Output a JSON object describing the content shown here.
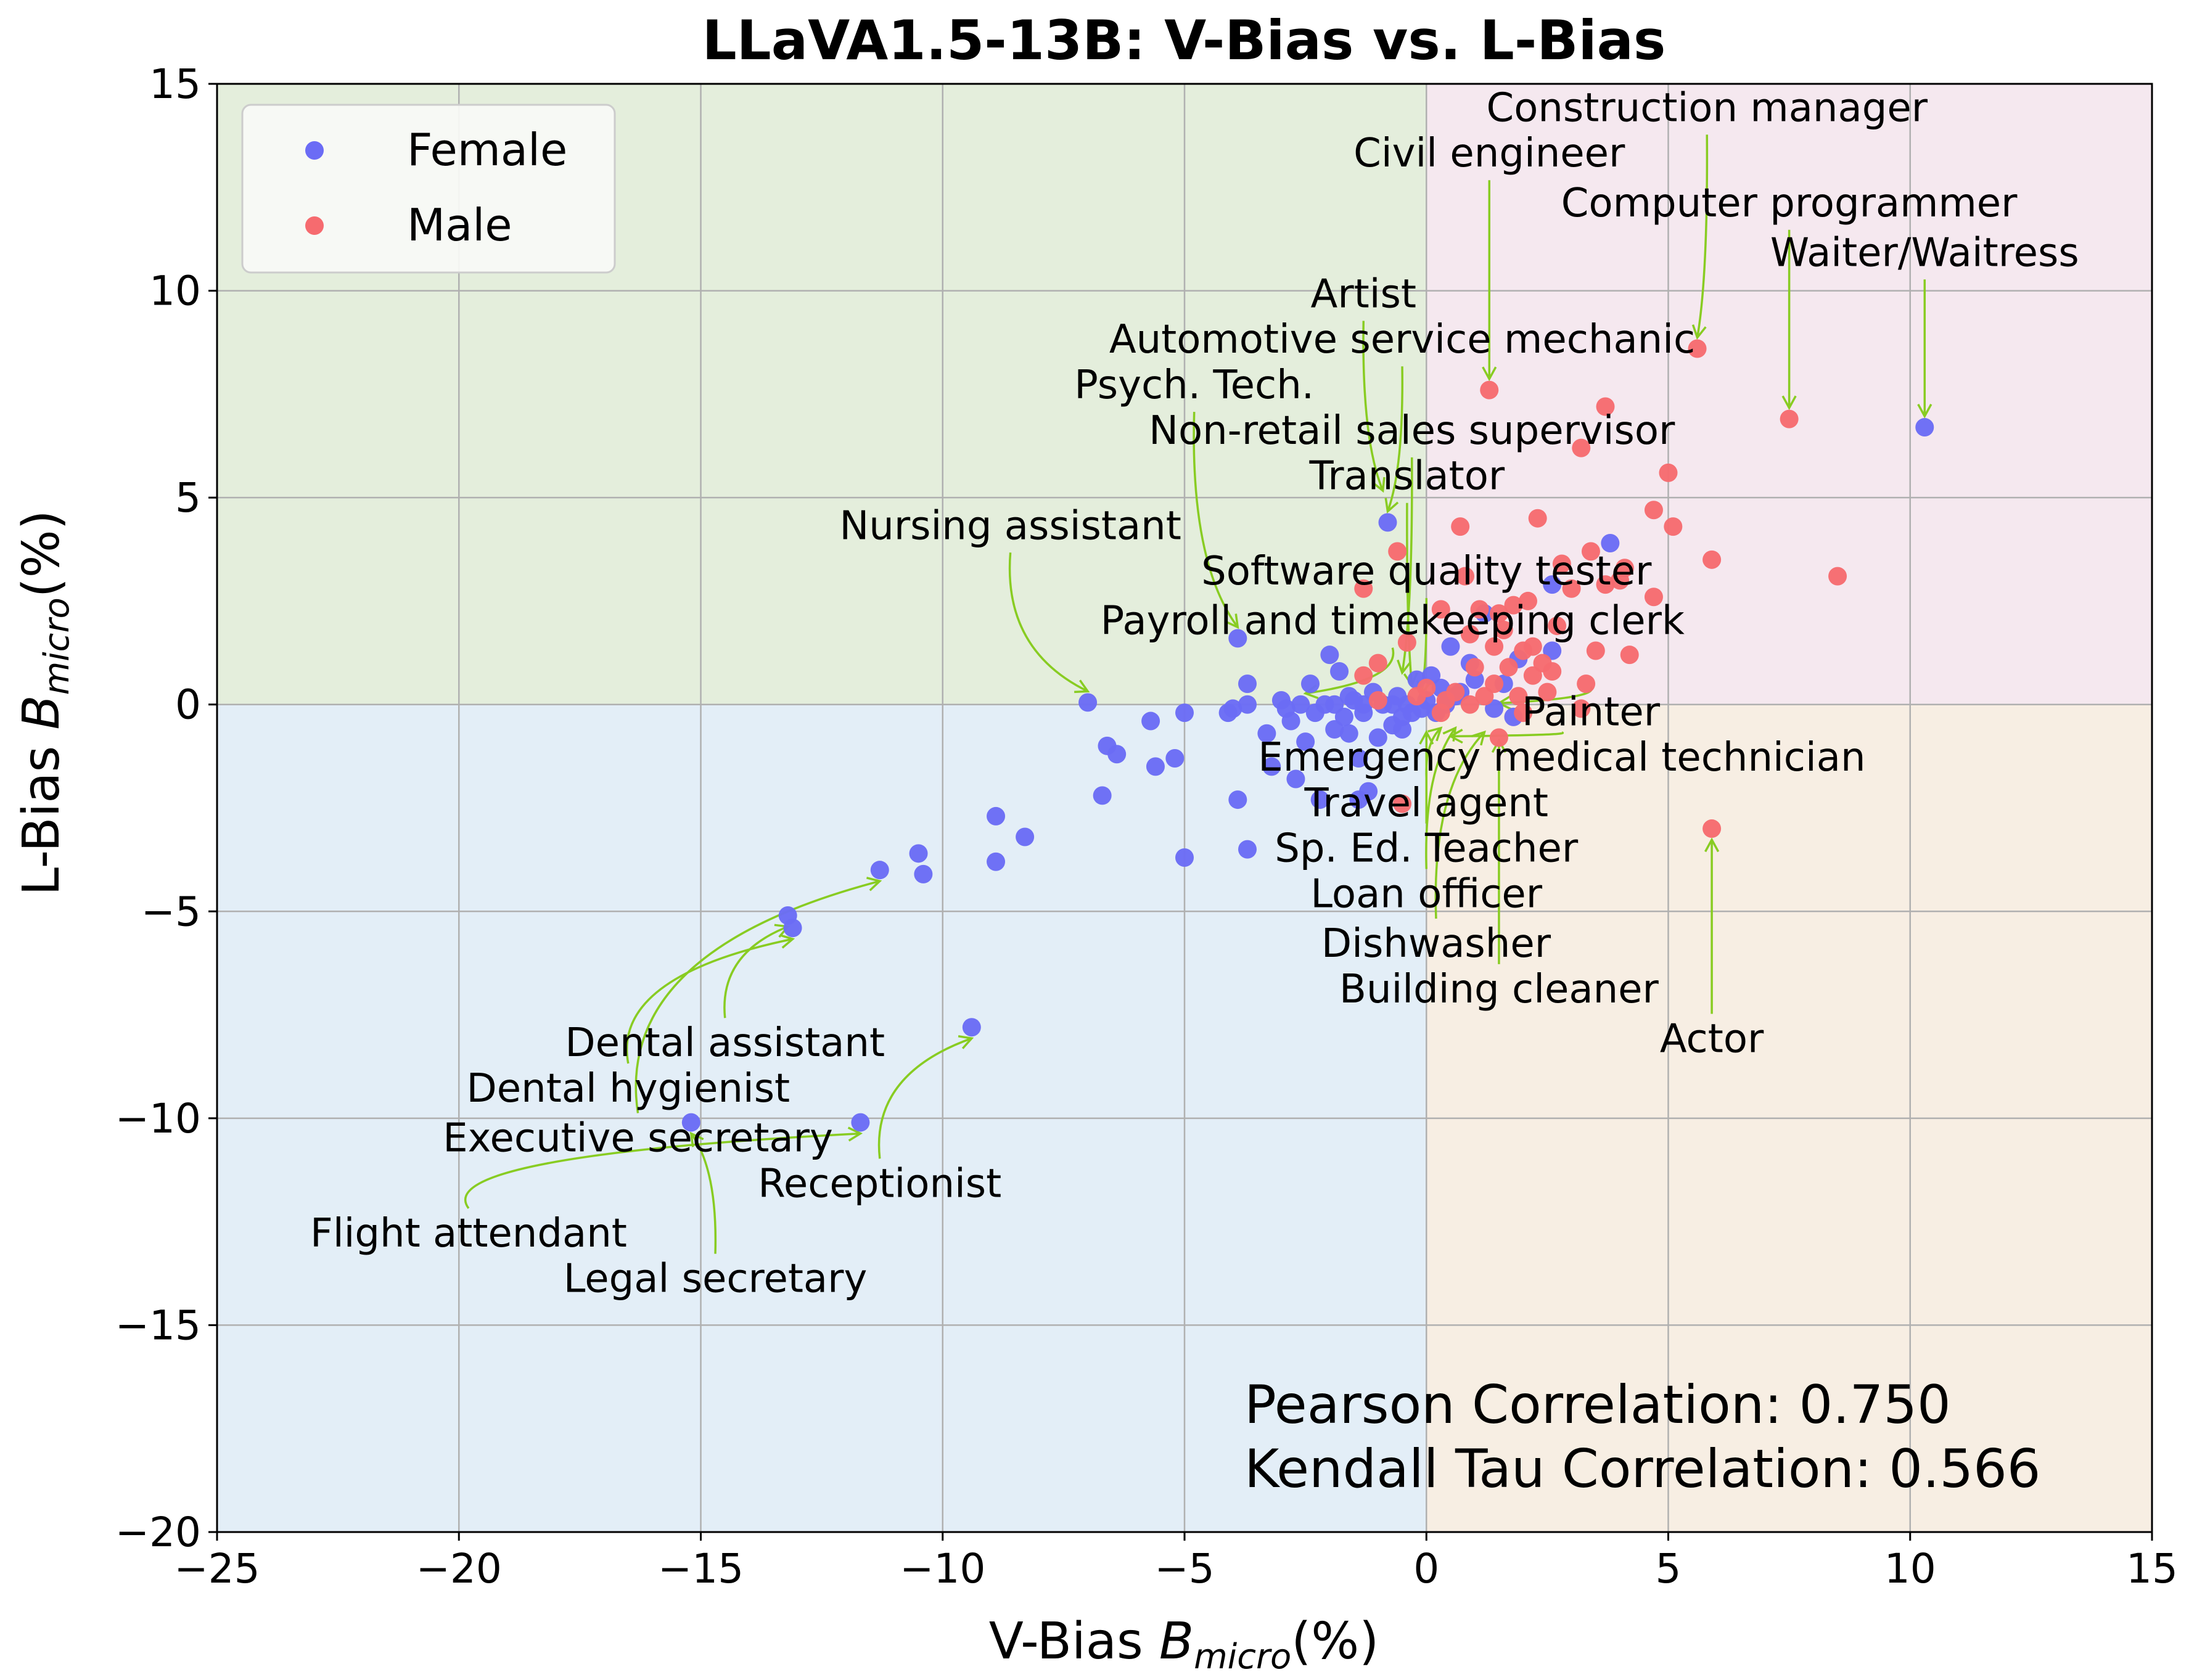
{
  "chart_data": {
    "type": "scatter",
    "title": "LLaVA1.5-13B: V-Bias vs. L-Bias",
    "xlabel": "V-Bias",
    "xlabel_math": "B",
    "xlabel_sub": "micro",
    "xlabel_unit": "(%)",
    "ylabel": "L-Bias",
    "ylabel_math": "B",
    "ylabel_sub": "micro",
    "ylabel_unit": "(%)",
    "xlim": [
      -25,
      15
    ],
    "ylim": [
      -20,
      15
    ],
    "xticks": [
      -25,
      -20,
      -15,
      -10,
      -5,
      0,
      5,
      10,
      15
    ],
    "yticks": [
      -20,
      -15,
      -10,
      -5,
      0,
      5,
      10,
      15
    ],
    "xtick_labels": [
      "−25",
      "−20",
      "−15",
      "−10",
      "−5",
      "0",
      "5",
      "10",
      "15"
    ],
    "ytick_labels": [
      "−20",
      "−15",
      "−10",
      "−5",
      "0",
      "5",
      "10",
      "15"
    ],
    "grid": true,
    "legend_position": "top-left",
    "quadrant_colors": {
      "top_left": "#e4eedc",
      "top_right": "#f5e8ef",
      "bottom_left": "#e3eef7",
      "bottom_right": "#f7eee3"
    },
    "annotation_arrow_color": "#88cc22",
    "series": [
      {
        "name": "Female",
        "color": "#6b6cf5",
        "points": [
          [
            -15.2,
            -10.1
          ],
          [
            -13.2,
            -5.1
          ],
          [
            -13.1,
            -5.4
          ],
          [
            -11.7,
            -10.1
          ],
          [
            -11.3,
            -4.0
          ],
          [
            -10.5,
            -3.6
          ],
          [
            -10.4,
            -4.1
          ],
          [
            -9.4,
            -7.8
          ],
          [
            -8.9,
            -2.7
          ],
          [
            -8.9,
            -3.8
          ],
          [
            -8.3,
            -3.2
          ],
          [
            -7.0,
            0.05
          ],
          [
            -6.6,
            -1.0
          ],
          [
            -6.4,
            -1.2
          ],
          [
            -6.7,
            -2.2
          ],
          [
            -5.7,
            -0.4
          ],
          [
            -5.6,
            -1.5
          ],
          [
            -5.2,
            -1.3
          ],
          [
            -5.0,
            -0.2
          ],
          [
            -5.0,
            -3.7
          ],
          [
            -4.1,
            -0.2
          ],
          [
            -4.0,
            -0.1
          ],
          [
            -3.9,
            1.6
          ],
          [
            -3.7,
            0.5
          ],
          [
            -3.7,
            0.0
          ],
          [
            -3.9,
            -2.3
          ],
          [
            -3.7,
            -3.5
          ],
          [
            -3.3,
            -0.7
          ],
          [
            -3.2,
            -1.5
          ],
          [
            -3.0,
            0.1
          ],
          [
            -2.8,
            -0.4
          ],
          [
            -2.7,
            -1.8
          ],
          [
            -2.5,
            -0.9
          ],
          [
            -2.4,
            0.5
          ],
          [
            -2.3,
            -0.2
          ],
          [
            -2.2,
            -2.3
          ],
          [
            -2.1,
            0.0
          ],
          [
            -2.0,
            1.2
          ],
          [
            -1.9,
            -0.6
          ],
          [
            -1.8,
            0.8
          ],
          [
            -1.7,
            -0.3
          ],
          [
            -1.6,
            -0.7
          ],
          [
            -1.5,
            0.1
          ],
          [
            -1.4,
            -1.3
          ],
          [
            -1.4,
            -2.3
          ],
          [
            -1.3,
            -0.2
          ],
          [
            -1.2,
            -2.1
          ],
          [
            -1.1,
            0.3
          ],
          [
            -1.0,
            -0.8
          ],
          [
            -0.9,
            0.0
          ],
          [
            -0.8,
            4.4
          ],
          [
            -0.7,
            -0.5
          ],
          [
            -0.6,
            0.2
          ],
          [
            -0.5,
            -0.3
          ],
          [
            -0.4,
            0.0
          ],
          [
            -0.3,
            -0.2
          ],
          [
            -0.2,
            0.6
          ],
          [
            -0.1,
            -0.1
          ],
          [
            0.0,
            0.1
          ],
          [
            0.1,
            0.7
          ],
          [
            0.2,
            -0.2
          ],
          [
            0.3,
            0.4
          ],
          [
            0.5,
            1.4
          ],
          [
            0.6,
            0.2
          ],
          [
            0.9,
            1.0
          ],
          [
            1.0,
            0.6
          ],
          [
            1.2,
            2.2
          ],
          [
            1.4,
            -0.1
          ],
          [
            1.6,
            0.5
          ],
          [
            1.9,
            1.1
          ],
          [
            1.8,
            -0.3
          ],
          [
            2.6,
            2.9
          ],
          [
            2.6,
            1.3
          ],
          [
            3.8,
            3.9
          ],
          [
            10.3,
            6.7
          ],
          [
            -2.6,
            0.0
          ],
          [
            -1.9,
            0.0
          ],
          [
            -1.3,
            0.0
          ],
          [
            -0.7,
            0.0
          ],
          [
            0.4,
            0.0
          ],
          [
            -2.9,
            -0.1
          ],
          [
            -1.6,
            0.2
          ],
          [
            -0.5,
            -0.6
          ],
          [
            0.7,
            0.3
          ]
        ]
      },
      {
        "name": "Male",
        "color": "#f66b6f",
        "points": [
          [
            -0.5,
            -2.4
          ],
          [
            -1.3,
            2.8
          ],
          [
            -1.3,
            0.7
          ],
          [
            -1.0,
            1.0
          ],
          [
            -1.0,
            0.1
          ],
          [
            -0.6,
            3.7
          ],
          [
            -0.4,
            1.5
          ],
          [
            -0.2,
            0.2
          ],
          [
            0.0,
            0.4
          ],
          [
            0.3,
            2.3
          ],
          [
            0.4,
            0.1
          ],
          [
            0.6,
            0.3
          ],
          [
            0.7,
            4.3
          ],
          [
            0.8,
            3.1
          ],
          [
            0.9,
            1.7
          ],
          [
            1.0,
            0.9
          ],
          [
            1.1,
            2.3
          ],
          [
            1.2,
            0.2
          ],
          [
            1.3,
            7.6
          ],
          [
            1.4,
            1.4
          ],
          [
            1.5,
            -0.8
          ],
          [
            1.5,
            2.2
          ],
          [
            1.6,
            1.8
          ],
          [
            1.7,
            0.9
          ],
          [
            1.8,
            2.4
          ],
          [
            1.9,
            0.2
          ],
          [
            2.0,
            1.3
          ],
          [
            2.1,
            2.5
          ],
          [
            2.2,
            0.7
          ],
          [
            2.3,
            4.5
          ],
          [
            2.4,
            1.0
          ],
          [
            2.5,
            0.3
          ],
          [
            2.7,
            1.9
          ],
          [
            2.8,
            3.4
          ],
          [
            3.0,
            2.8
          ],
          [
            3.2,
            6.2
          ],
          [
            3.2,
            -0.1
          ],
          [
            3.4,
            3.7
          ],
          [
            3.5,
            1.3
          ],
          [
            3.7,
            2.9
          ],
          [
            3.7,
            7.2
          ],
          [
            4.0,
            3.0
          ],
          [
            4.1,
            3.3
          ],
          [
            4.2,
            1.2
          ],
          [
            4.7,
            2.6
          ],
          [
            4.7,
            4.7
          ],
          [
            5.0,
            5.6
          ],
          [
            5.1,
            4.3
          ],
          [
            5.6,
            8.6
          ],
          [
            5.9,
            -3.0
          ],
          [
            5.9,
            3.5
          ],
          [
            7.5,
            6.9
          ],
          [
            8.5,
            3.1
          ],
          [
            0.3,
            -0.2
          ],
          [
            0.9,
            0.0
          ],
          [
            1.4,
            0.5
          ],
          [
            2.0,
            -0.2
          ],
          [
            2.6,
            0.8
          ],
          [
            3.3,
            0.5
          ],
          [
            2.2,
            1.4
          ]
        ]
      }
    ],
    "annotations": [
      {
        "text": "Construction manager",
        "point": [
          5.6,
          8.6
        ],
        "text_pos": [
          5.8,
          14.1
        ],
        "align": "middle"
      },
      {
        "text": "Civil engineer",
        "point": [
          1.3,
          7.6
        ],
        "text_pos": [
          1.3,
          13.0
        ],
        "align": "middle"
      },
      {
        "text": "Computer programmer",
        "point": [
          7.5,
          6.9
        ],
        "text_pos": [
          7.5,
          11.8
        ],
        "align": "middle"
      },
      {
        "text": "Waiter/Waitress",
        "point": [
          10.3,
          6.7
        ],
        "text_pos": [
          10.3,
          10.6
        ],
        "align": "middle"
      },
      {
        "text": "Artist",
        "point": [
          -0.9,
          4.9
        ],
        "text_pos": [
          -1.3,
          9.6
        ],
        "align": "middle"
      },
      {
        "text": "Automotive service mechanic",
        "point": [
          -0.8,
          4.4
        ],
        "text_pos": [
          -0.5,
          8.5
        ],
        "align": "middle"
      },
      {
        "text": "Psych. Tech.",
        "point": [
          -3.9,
          1.6
        ],
        "text_pos": [
          -4.8,
          7.4
        ],
        "align": "middle"
      },
      {
        "text": "Non-retail sales supervisor",
        "point": [
          -0.5,
          0.5
        ],
        "text_pos": [
          -0.3,
          6.3
        ],
        "align": "middle"
      },
      {
        "text": "Translator",
        "point": [
          -0.3,
          0.2
        ],
        "text_pos": [
          -0.4,
          5.2
        ],
        "align": "middle"
      },
      {
        "text": "Nursing assistant",
        "point": [
          -7.0,
          0.05
        ],
        "text_pos": [
          -8.6,
          4.0
        ],
        "align": "middle"
      },
      {
        "text": "Software quality tester",
        "point": [
          -0.1,
          0.0
        ],
        "text_pos": [
          0.0,
          2.9
        ],
        "align": "middle"
      },
      {
        "text": "Payroll and timekeeping clerk",
        "point": [
          -2.5,
          0.0
        ],
        "text_pos": [
          -0.7,
          1.7
        ],
        "align": "middle"
      },
      {
        "text": "Painter",
        "point": [
          1.5,
          0.3
        ],
        "text_pos": [
          3.4,
          -0.5
        ],
        "align": "middle"
      },
      {
        "text": "Emergency medical technician",
        "point": [
          0.5,
          -0.5
        ],
        "text_pos": [
          2.8,
          -1.6
        ],
        "align": "middle"
      },
      {
        "text": "Travel agent",
        "point": [
          0.3,
          -0.3
        ],
        "text_pos": [
          0.0,
          -2.7
        ],
        "align": "middle"
      },
      {
        "text": "Sp. Ed. Teacher",
        "point": [
          0.0,
          -0.4
        ],
        "text_pos": [
          0.0,
          -3.8
        ],
        "align": "middle"
      },
      {
        "text": "Loan officer",
        "point": [
          0.6,
          -0.3
        ],
        "text_pos": [
          0.0,
          -4.9
        ],
        "align": "middle"
      },
      {
        "text": "Dishwasher",
        "point": [
          1.2,
          -0.4
        ],
        "text_pos": [
          0.2,
          -6.1
        ],
        "align": "middle"
      },
      {
        "text": "Building cleaner",
        "point": [
          1.5,
          -0.6
        ],
        "text_pos": [
          1.5,
          -7.2
        ],
        "align": "middle"
      },
      {
        "text": "Actor",
        "point": [
          5.9,
          -3.0
        ],
        "text_pos": [
          5.9,
          -8.4
        ],
        "align": "middle"
      },
      {
        "text": "Dental assistant",
        "point": [
          -13.2,
          -5.1
        ],
        "text_pos": [
          -14.5,
          -8.5
        ],
        "align": "middle"
      },
      {
        "text": "Dental hygienist",
        "point": [
          -13.1,
          -5.4
        ],
        "text_pos": [
          -16.5,
          -9.6
        ],
        "align": "middle"
      },
      {
        "text": "Executive secretary",
        "point": [
          -11.3,
          -4.0
        ],
        "text_pos": [
          -16.3,
          -10.8
        ],
        "align": "middle"
      },
      {
        "text": "Receptionist",
        "point": [
          -9.4,
          -7.8
        ],
        "text_pos": [
          -11.3,
          -11.9
        ],
        "align": "middle"
      },
      {
        "text": "Flight attendant",
        "point": [
          -11.7,
          -10.1
        ],
        "text_pos": [
          -19.8,
          -13.1
        ],
        "align": "middle"
      },
      {
        "text": "Legal secretary",
        "point": [
          -15.2,
          -10.1
        ],
        "text_pos": [
          -14.7,
          -14.2
        ],
        "align": "middle"
      }
    ],
    "legend": [
      {
        "label": "Female",
        "color": "#6b6cf5"
      },
      {
        "label": "Male",
        "color": "#f66b6f"
      }
    ],
    "stats": [
      "Pearson Correlation: 0.750",
      "Kendall Tau Correlation: 0.566"
    ]
  }
}
